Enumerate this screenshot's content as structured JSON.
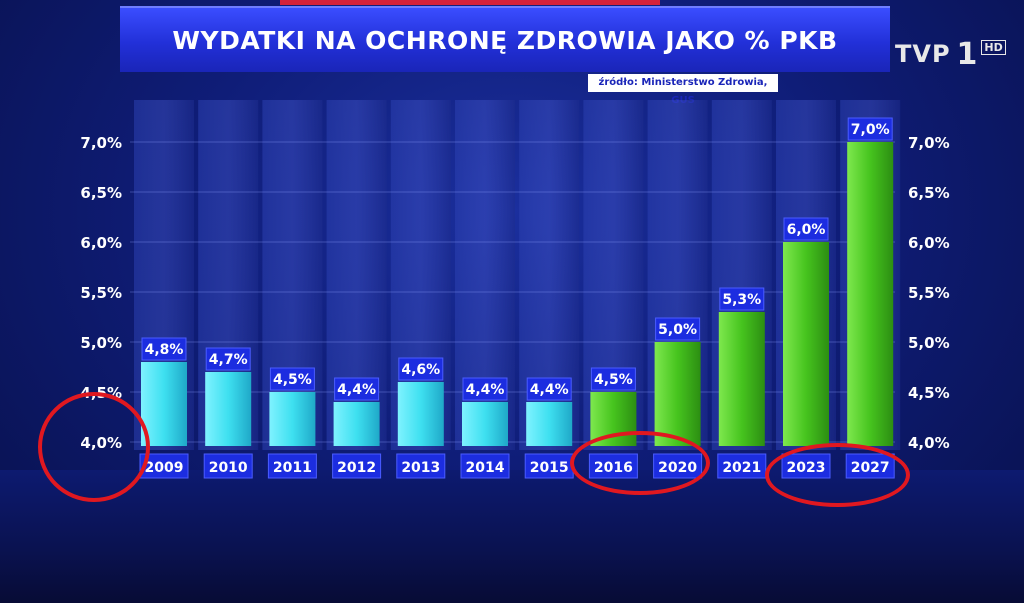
{
  "header": {
    "title": "WYDATKI NA OCHRONĘ ZDROWIA JAKO % PKB",
    "source": "źródło: Ministerstwo Zdrowia, GUS"
  },
  "logo": {
    "brand": "TVP",
    "channel": "1",
    "quality": "HD"
  },
  "colors": {
    "actual_bars": "#3ee0f0",
    "forecast_bars": "#46c41e",
    "labels_bg": "#1c2de0",
    "circles": "#e01820"
  },
  "chart_data": {
    "type": "bar",
    "title": "WYDATKI NA OCHRONĘ ZDROWIA JAKO % PKB",
    "categories": [
      "2009",
      "2010",
      "2011",
      "2012",
      "2013",
      "2014",
      "2015",
      "2016",
      "2020",
      "2021",
      "2023",
      "2027"
    ],
    "values": [
      4.8,
      4.7,
      4.5,
      4.4,
      4.6,
      4.4,
      4.4,
      4.5,
      5.0,
      5.3,
      6.0,
      7.0
    ],
    "value_labels": [
      "4,8%",
      "4,7%",
      "4,5%",
      "4,4%",
      "4,6%",
      "4,4%",
      "4,4%",
      "4,5%",
      "5,0%",
      "5,3%",
      "6,0%",
      "7,0%"
    ],
    "bar_colors": [
      "cyan",
      "cyan",
      "cyan",
      "cyan",
      "cyan",
      "cyan",
      "cyan",
      "green",
      "green",
      "green",
      "green",
      "green"
    ],
    "ylim": [
      4.0,
      7.0
    ],
    "yticks": [
      4.0,
      4.5,
      5.0,
      5.5,
      6.0,
      6.5,
      7.0
    ],
    "ytick_labels": [
      "4,0%",
      "4,5%",
      "5,0%",
      "5,5%",
      "6,0%",
      "6,5%",
      "7,0%"
    ],
    "grid": true,
    "xlabel": "",
    "ylabel": ""
  },
  "annotations": {
    "circled": [
      "4,0%",
      "2016",
      "2020",
      "2023",
      "2027"
    ]
  }
}
